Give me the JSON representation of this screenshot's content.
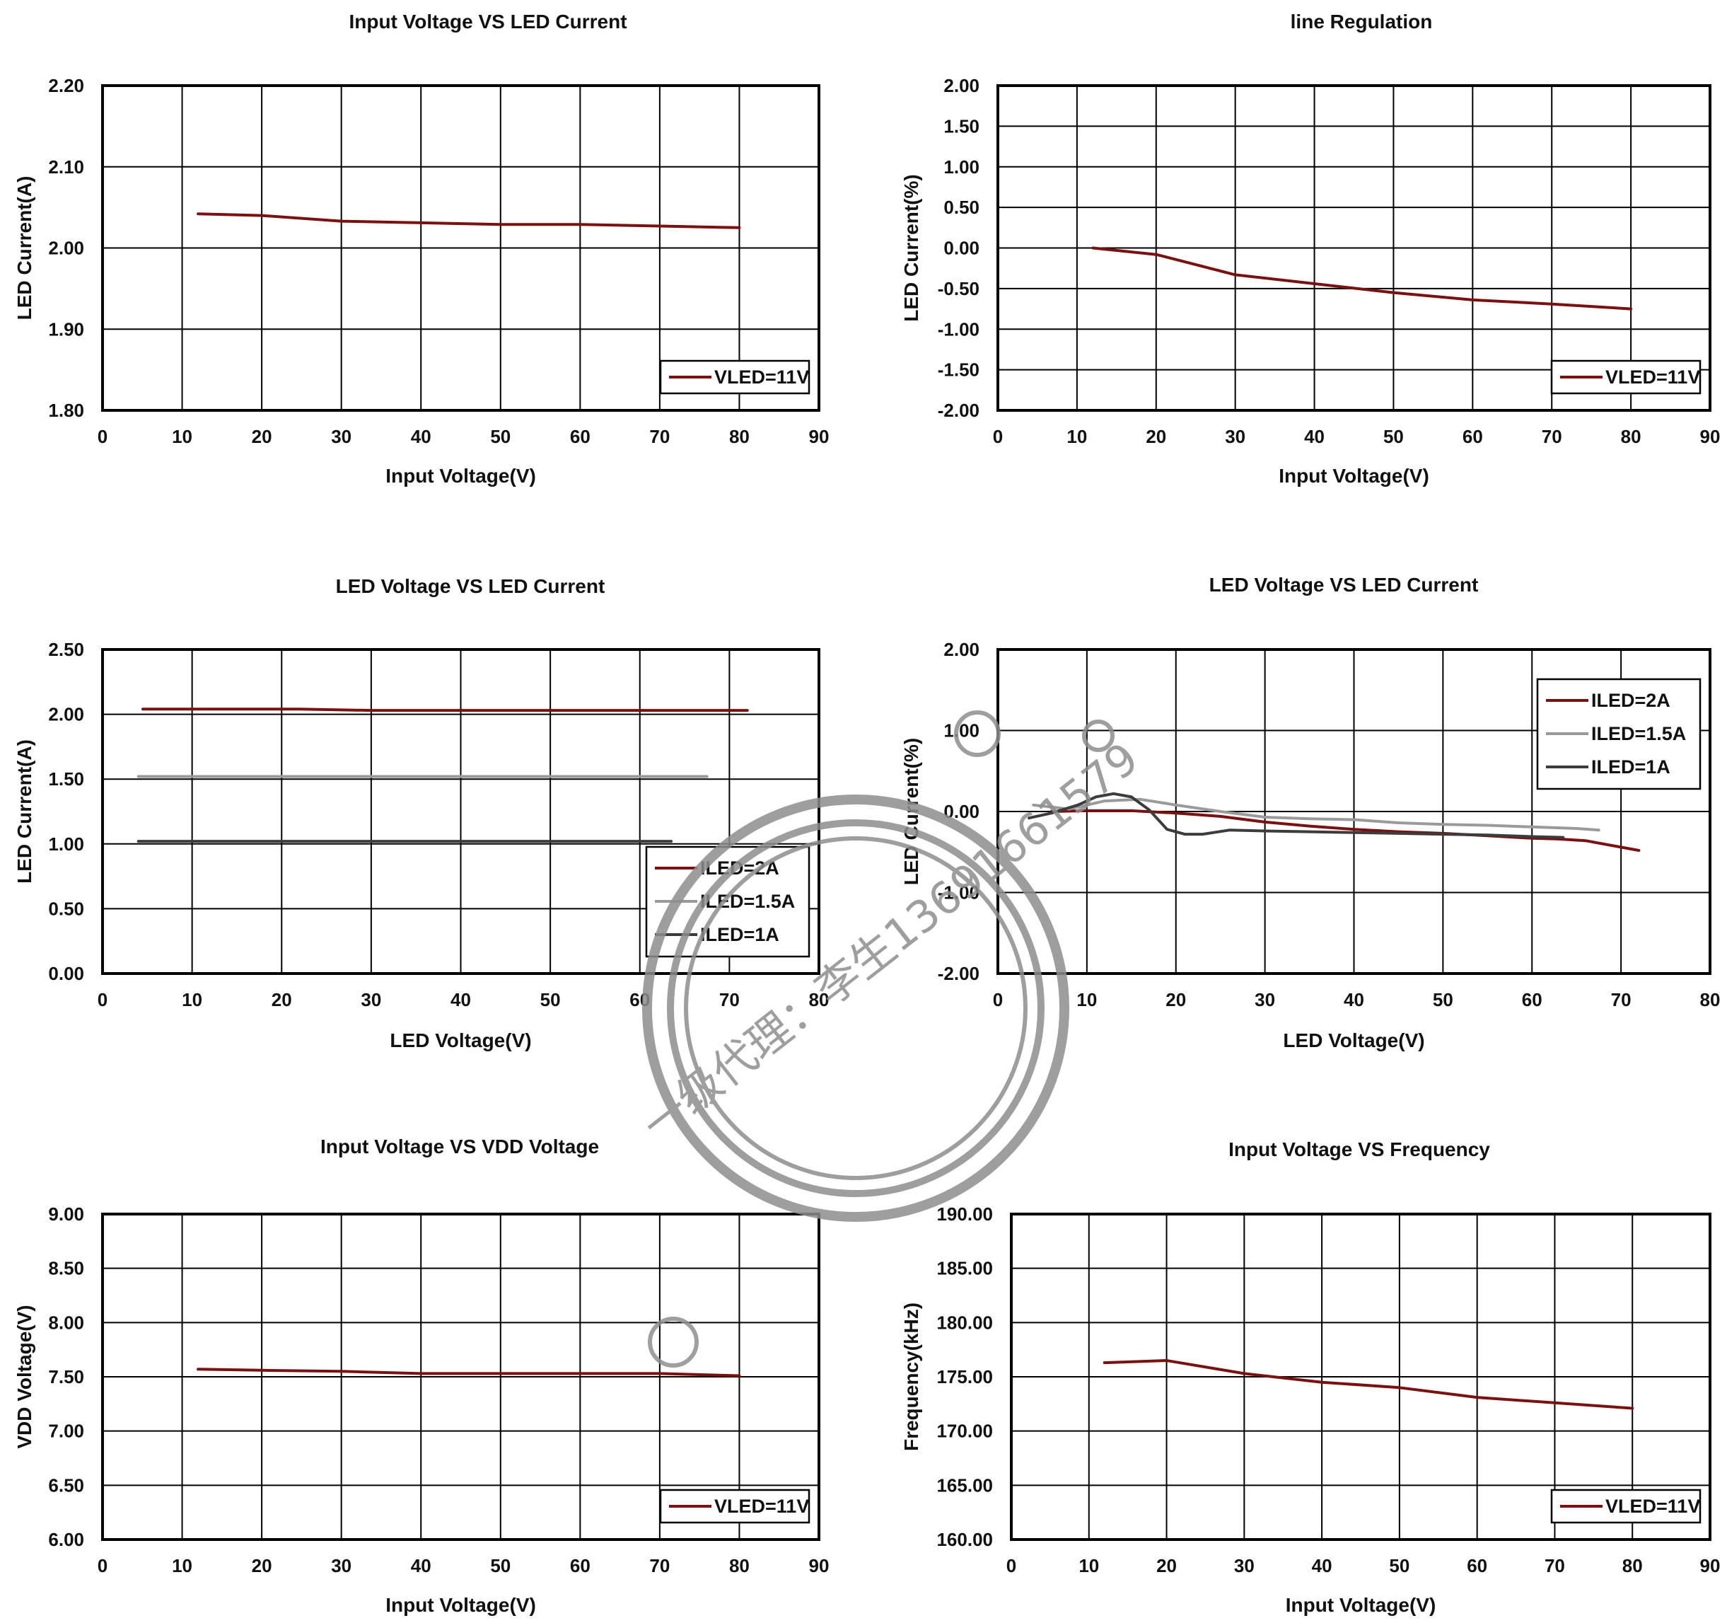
{
  "chart_data": [
    {
      "type": "line",
      "title": "Input Voltage VS LED Current",
      "xlabel": "Input Voltage(V)",
      "ylabel": "LED Current(A)",
      "xlim": [
        0,
        90
      ],
      "ylim": [
        1.8,
        2.2
      ],
      "xticks": [
        "0",
        "10",
        "20",
        "30",
        "40",
        "50",
        "60",
        "70",
        "80",
        "90"
      ],
      "yticks": [
        "2.20",
        "2.10",
        "2.00",
        "1.90",
        "1.80"
      ],
      "grid": true,
      "legend_position": "bottom-right",
      "series": [
        {
          "name": "VLED=11V",
          "color": "#7a1010",
          "x": [
            12,
            20,
            30,
            40,
            50,
            60,
            70,
            80
          ],
          "y": [
            2.042,
            2.04,
            2.033,
            2.031,
            2.029,
            2.029,
            2.027,
            2.025
          ]
        }
      ]
    },
    {
      "type": "line",
      "title": "line Regulation",
      "xlabel": "Input Voltage(V)",
      "ylabel": "LED Current(%)",
      "xlim": [
        0,
        90
      ],
      "ylim": [
        -2.0,
        2.0
      ],
      "xticks": [
        "0",
        "10",
        "20",
        "30",
        "40",
        "50",
        "60",
        "70",
        "80",
        "90"
      ],
      "yticks": [
        "2.00",
        "1.50",
        "1.00",
        "0.50",
        "0.00",
        "-0.50",
        "-1.00",
        "-1.50",
        "-2.00"
      ],
      "grid": true,
      "legend_position": "bottom-right",
      "series": [
        {
          "name": "VLED=11V",
          "color": "#7a1010",
          "x": [
            12,
            20,
            30,
            40,
            50,
            60,
            70,
            80
          ],
          "y": [
            0.0,
            -0.08,
            -0.33,
            -0.44,
            -0.55,
            -0.64,
            -0.69,
            -0.75
          ]
        }
      ]
    },
    {
      "type": "line",
      "title": "LED Voltage VS LED Current",
      "xlabel": "LED Voltage(V)",
      "ylabel": "LED Current(A)",
      "xlim": [
        0,
        80
      ],
      "ylim": [
        0.0,
        2.5
      ],
      "xticks": [
        "0",
        "10",
        "20",
        "30",
        "40",
        "50",
        "60",
        "70",
        "80"
      ],
      "yticks": [
        "2.50",
        "2.00",
        "1.50",
        "1.00",
        "0.50",
        "0.00"
      ],
      "grid": true,
      "legend_position": "bottom-right",
      "series": [
        {
          "name": "ILED=2A",
          "color": "#7a1010",
          "x": [
            4.5,
            22,
            30,
            50,
            72
          ],
          "y": [
            2.04,
            2.04,
            2.03,
            2.03,
            2.03
          ]
        },
        {
          "name": "ILED=1.5A",
          "color": "#9a9a9a",
          "x": [
            4,
            30,
            67.5
          ],
          "y": [
            1.52,
            1.52,
            1.52
          ]
        },
        {
          "name": "ILED=1A",
          "color": "#3c3c3c",
          "x": [
            4,
            30,
            63.5
          ],
          "y": [
            1.02,
            1.02,
            1.02
          ]
        }
      ]
    },
    {
      "type": "line",
      "title": "LED Voltage VS LED Current",
      "xlabel": "LED Voltage(V)",
      "ylabel": "LED Current(%)",
      "xlim": [
        0,
        80
      ],
      "ylim": [
        -2.0,
        2.0
      ],
      "xticks": [
        "0",
        "10",
        "20",
        "30",
        "40",
        "50",
        "60",
        "70",
        "80"
      ],
      "yticks": [
        "2.00",
        "1.00",
        "0.00",
        "-1.00",
        "-2.00"
      ],
      "grid": true,
      "legend_position": "top-right",
      "series": [
        {
          "name": "ILED=2A",
          "color": "#7a1010",
          "x": [
            6,
            10,
            15,
            20,
            25,
            30,
            35,
            40,
            45,
            50,
            55,
            60,
            63,
            66,
            69,
            72
          ],
          "y": [
            0.0,
            0.01,
            0.01,
            -0.02,
            -0.06,
            -0.13,
            -0.18,
            -0.22,
            -0.25,
            -0.27,
            -0.3,
            -0.33,
            -0.34,
            -0.36,
            -0.42,
            -0.48
          ]
        },
        {
          "name": "ILED=1.5A",
          "color": "#9a9a9a",
          "x": [
            4,
            8,
            12,
            16,
            20,
            25,
            30,
            35,
            40,
            45,
            50,
            55,
            60,
            65,
            67.5
          ],
          "y": [
            0.08,
            0.03,
            0.13,
            0.15,
            0.08,
            0.0,
            -0.07,
            -0.09,
            -0.1,
            -0.14,
            -0.16,
            -0.17,
            -0.19,
            -0.21,
            -0.23
          ]
        },
        {
          "name": "ILED=1A",
          "color": "#3c3c3c",
          "x": [
            3.5,
            6,
            9,
            11,
            13,
            15,
            17,
            19,
            21,
            23,
            26,
            30,
            35,
            40,
            45,
            50,
            55,
            60,
            63.5
          ],
          "y": [
            -0.08,
            -0.02,
            0.08,
            0.18,
            0.22,
            0.18,
            0.02,
            -0.22,
            -0.28,
            -0.28,
            -0.23,
            -0.24,
            -0.25,
            -0.26,
            -0.27,
            -0.28,
            -0.29,
            -0.31,
            -0.32
          ]
        }
      ]
    },
    {
      "type": "line",
      "title": "Input Voltage VS VDD Voltage",
      "xlabel": "Input Voltage(V)",
      "ylabel": "VDD Voltage(V)",
      "xlim": [
        0,
        90
      ],
      "ylim": [
        6.0,
        9.0
      ],
      "xticks": [
        "0",
        "10",
        "20",
        "30",
        "40",
        "50",
        "60",
        "70",
        "80",
        "90"
      ],
      "yticks": [
        "9.00",
        "8.50",
        "8.00",
        "7.50",
        "7.00",
        "6.50",
        "6.00"
      ],
      "grid": true,
      "legend_position": "bottom-right",
      "series": [
        {
          "name": "VLED=11V",
          "color": "#7a1010",
          "x": [
            12,
            20,
            30,
            40,
            50,
            60,
            70,
            80
          ],
          "y": [
            7.57,
            7.56,
            7.55,
            7.53,
            7.53,
            7.53,
            7.53,
            7.51
          ]
        }
      ]
    },
    {
      "type": "line",
      "title": "Input Voltage VS Frequency",
      "xlabel": "Input Voltage(V)",
      "ylabel": "Frequency(kHz)",
      "xlim": [
        0,
        90
      ],
      "ylim": [
        160.0,
        190.0
      ],
      "xticks": [
        "0",
        "10",
        "20",
        "30",
        "40",
        "50",
        "60",
        "70",
        "80",
        "90"
      ],
      "yticks": [
        "190.00",
        "185.00",
        "180.00",
        "175.00",
        "170.00",
        "165.00",
        "160.00"
      ],
      "grid": true,
      "legend_position": "bottom-right",
      "series": [
        {
          "name": "VLED=11V",
          "color": "#7a1010",
          "x": [
            12,
            20,
            30,
            40,
            50,
            60,
            70,
            80
          ],
          "y": [
            176.3,
            176.5,
            175.3,
            174.5,
            174.0,
            173.1,
            172.6,
            172.1
          ]
        }
      ]
    }
  ],
  "watermark": {
    "text": "一级代理：李生13691661579",
    "color": "#8e8e8e"
  }
}
